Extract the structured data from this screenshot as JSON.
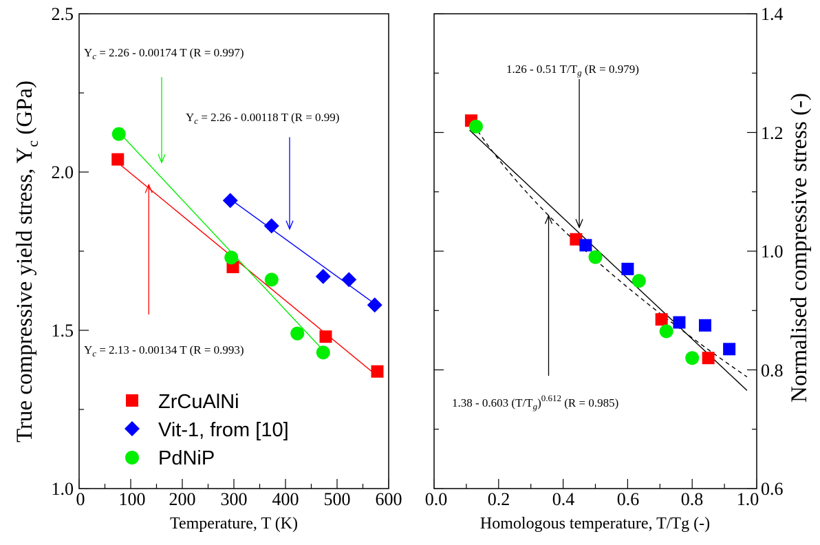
{
  "chart_data": [
    {
      "type": "scatter",
      "xlabel": "Temperature, T (K)",
      "ylabel": "True compressive yield stress, Y",
      "ylabel_sub": "c",
      "ylabel_unit": " (GPa)",
      "xlim": [
        0,
        600
      ],
      "ylim": [
        1.0,
        2.5
      ],
      "xticks": [
        "0",
        "100",
        "200",
        "300",
        "400",
        "500",
        "600"
      ],
      "yticks": [
        "1.0",
        "1.5",
        "2.0",
        "2.5"
      ],
      "legend": {
        "position": "bottom-left"
      },
      "series": [
        {
          "name": "ZrCuAlNi",
          "marker": "square",
          "color": "#ff0000",
          "points": [
            [
              75,
              2.04
            ],
            [
              298,
              1.7
            ],
            [
              478,
              1.48
            ],
            [
              578,
              1.37
            ]
          ],
          "fit": {
            "label": "= 2.13 - 0.00134 T (R = 0.993)",
            "intercept": 2.13,
            "slope": -0.00134,
            "x_range": [
              75,
              578
            ]
          }
        },
        {
          "name": "Vit-1, from [10]",
          "marker": "diamond",
          "color": "#0000ff",
          "points": [
            [
              293,
              1.91
            ],
            [
              373,
              1.83
            ],
            [
              473,
              1.67
            ],
            [
              523,
              1.66
            ],
            [
              573,
              1.58
            ]
          ],
          "fit": {
            "label": "= 2.26 - 0.00118 T (R = 0.99)",
            "intercept": 2.26,
            "slope": -0.00118,
            "x_range": [
              293,
              573
            ]
          }
        },
        {
          "name": "PdNiP",
          "marker": "circle",
          "color": "#00ee00",
          "points": [
            [
              77,
              2.12
            ],
            [
              295,
              1.73
            ],
            [
              373,
              1.66
            ],
            [
              423,
              1.49
            ],
            [
              473,
              1.43
            ]
          ],
          "fit": {
            "label": "= 2.26 - 0.00174 T (R = 0.997)",
            "intercept": 2.26,
            "slope": -0.00174,
            "x_range": [
              77,
              473
            ]
          }
        }
      ],
      "annotations": [
        {
          "text_prefix": "Y",
          "text_sub": "c",
          "text": " = 2.26 - 0.00174 T (R = 0.997)",
          "color": "#000000",
          "arrow_color": "#00ee00",
          "arrow_from": [
            160,
            2.3
          ],
          "arrow_to": [
            160,
            2.03
          ]
        },
        {
          "text_prefix": "Y",
          "text_sub": "c",
          "text": " = 2.26 - 0.00118 T (R = 0.99)",
          "color": "#000000",
          "arrow_color": "#0000ff",
          "arrow_from": [
            408,
            2.11
          ],
          "arrow_to": [
            408,
            1.82
          ]
        },
        {
          "text_prefix": "Y",
          "text_sub": "c",
          "text": " = 2.13 - 0.00134 T (R = 0.993)",
          "color": "#000000",
          "arrow_color": "#ff0000",
          "arrow_from": [
            135,
            1.55
          ],
          "arrow_to": [
            135,
            1.96
          ]
        }
      ]
    },
    {
      "type": "scatter",
      "xlabel": "Homologous temperature, T/Tg (-)",
      "ylabel": "Normalised compressive stress (-)",
      "ylabel_side": "right",
      "xlim": [
        0.0,
        1.0
      ],
      "ylim": [
        0.6,
        1.4
      ],
      "xticks": [
        "0.0",
        "0.2",
        "0.4",
        "0.6",
        "0.8",
        "1.0"
      ],
      "yticks": [
        "0.6",
        "0.8",
        "1.0",
        "1.2",
        "1.4"
      ],
      "series": [
        {
          "name": "ZrCuAlNi",
          "marker": "square",
          "color": "#ff0000",
          "points": [
            [
              0.115,
              1.22
            ],
            [
              0.44,
              1.02
            ],
            [
              0.705,
              0.885
            ],
            [
              0.85,
              0.82
            ]
          ]
        },
        {
          "name": "Vit-1",
          "marker": "square",
          "color": "#0000ff",
          "points": [
            [
              0.47,
              1.01
            ],
            [
              0.6,
              0.97
            ],
            [
              0.76,
              0.88
            ],
            [
              0.84,
              0.875
            ],
            [
              0.915,
              0.835
            ]
          ]
        },
        {
          "name": "PdNiP",
          "marker": "circle",
          "color": "#00ee00",
          "points": [
            [
              0.13,
              1.21
            ],
            [
              0.5,
              0.99
            ],
            [
              0.635,
              0.95
            ],
            [
              0.72,
              0.865
            ],
            [
              0.8,
              0.82
            ]
          ]
        }
      ],
      "fits": [
        {
          "label": "1.26 - 0.51 T/T",
          "sub": "g",
          "label_tail": " (R = 0.979)",
          "style": "solid",
          "a": 1.26,
          "b": 0.51,
          "p": 1.0,
          "x_range": [
            0.11,
            0.97
          ]
        },
        {
          "label": "1.38 - 0.603 (T/T",
          "sub": "g",
          "label_mid": ")",
          "sup": "0.612",
          "label_tail": " (R = 0.985)",
          "style": "dashed",
          "a": 1.38,
          "b": 0.603,
          "p": 0.612,
          "x_range": [
            0.11,
            0.97
          ]
        }
      ],
      "annotations": [
        {
          "arrow_from": [
            0.45,
            1.29
          ],
          "arrow_to": [
            0.45,
            1.04
          ]
        },
        {
          "arrow_from": [
            0.355,
            0.79
          ],
          "arrow_to": [
            0.355,
            1.06
          ]
        }
      ]
    }
  ]
}
